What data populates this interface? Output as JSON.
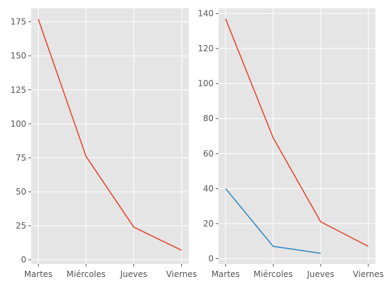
{
  "chart_data": [
    {
      "type": "line",
      "title": "",
      "xlabel": "",
      "ylabel": "",
      "categories": [
        "Martes",
        "Miércoles",
        "Jueves",
        "Viernes"
      ],
      "ylim": [
        -3,
        185
      ],
      "yticks": [
        0,
        25,
        50,
        75,
        100,
        125,
        150,
        175
      ],
      "grid": true,
      "series": [
        {
          "values": [
            177,
            76,
            24,
            7
          ],
          "color": "#E24A33"
        }
      ]
    },
    {
      "type": "line",
      "title": "",
      "xlabel": "",
      "ylabel": "",
      "categories": [
        "Martes",
        "Miércoles",
        "Jueves",
        "Viernes"
      ],
      "ylim": [
        -3,
        143
      ],
      "yticks": [
        0,
        20,
        40,
        60,
        80,
        100,
        120,
        140
      ],
      "grid": true,
      "series": [
        {
          "values": [
            137,
            69,
            21,
            7
          ],
          "color": "#E24A33"
        },
        {
          "values": [
            40,
            7,
            3,
            null
          ],
          "color": "#348ABD"
        }
      ]
    }
  ]
}
